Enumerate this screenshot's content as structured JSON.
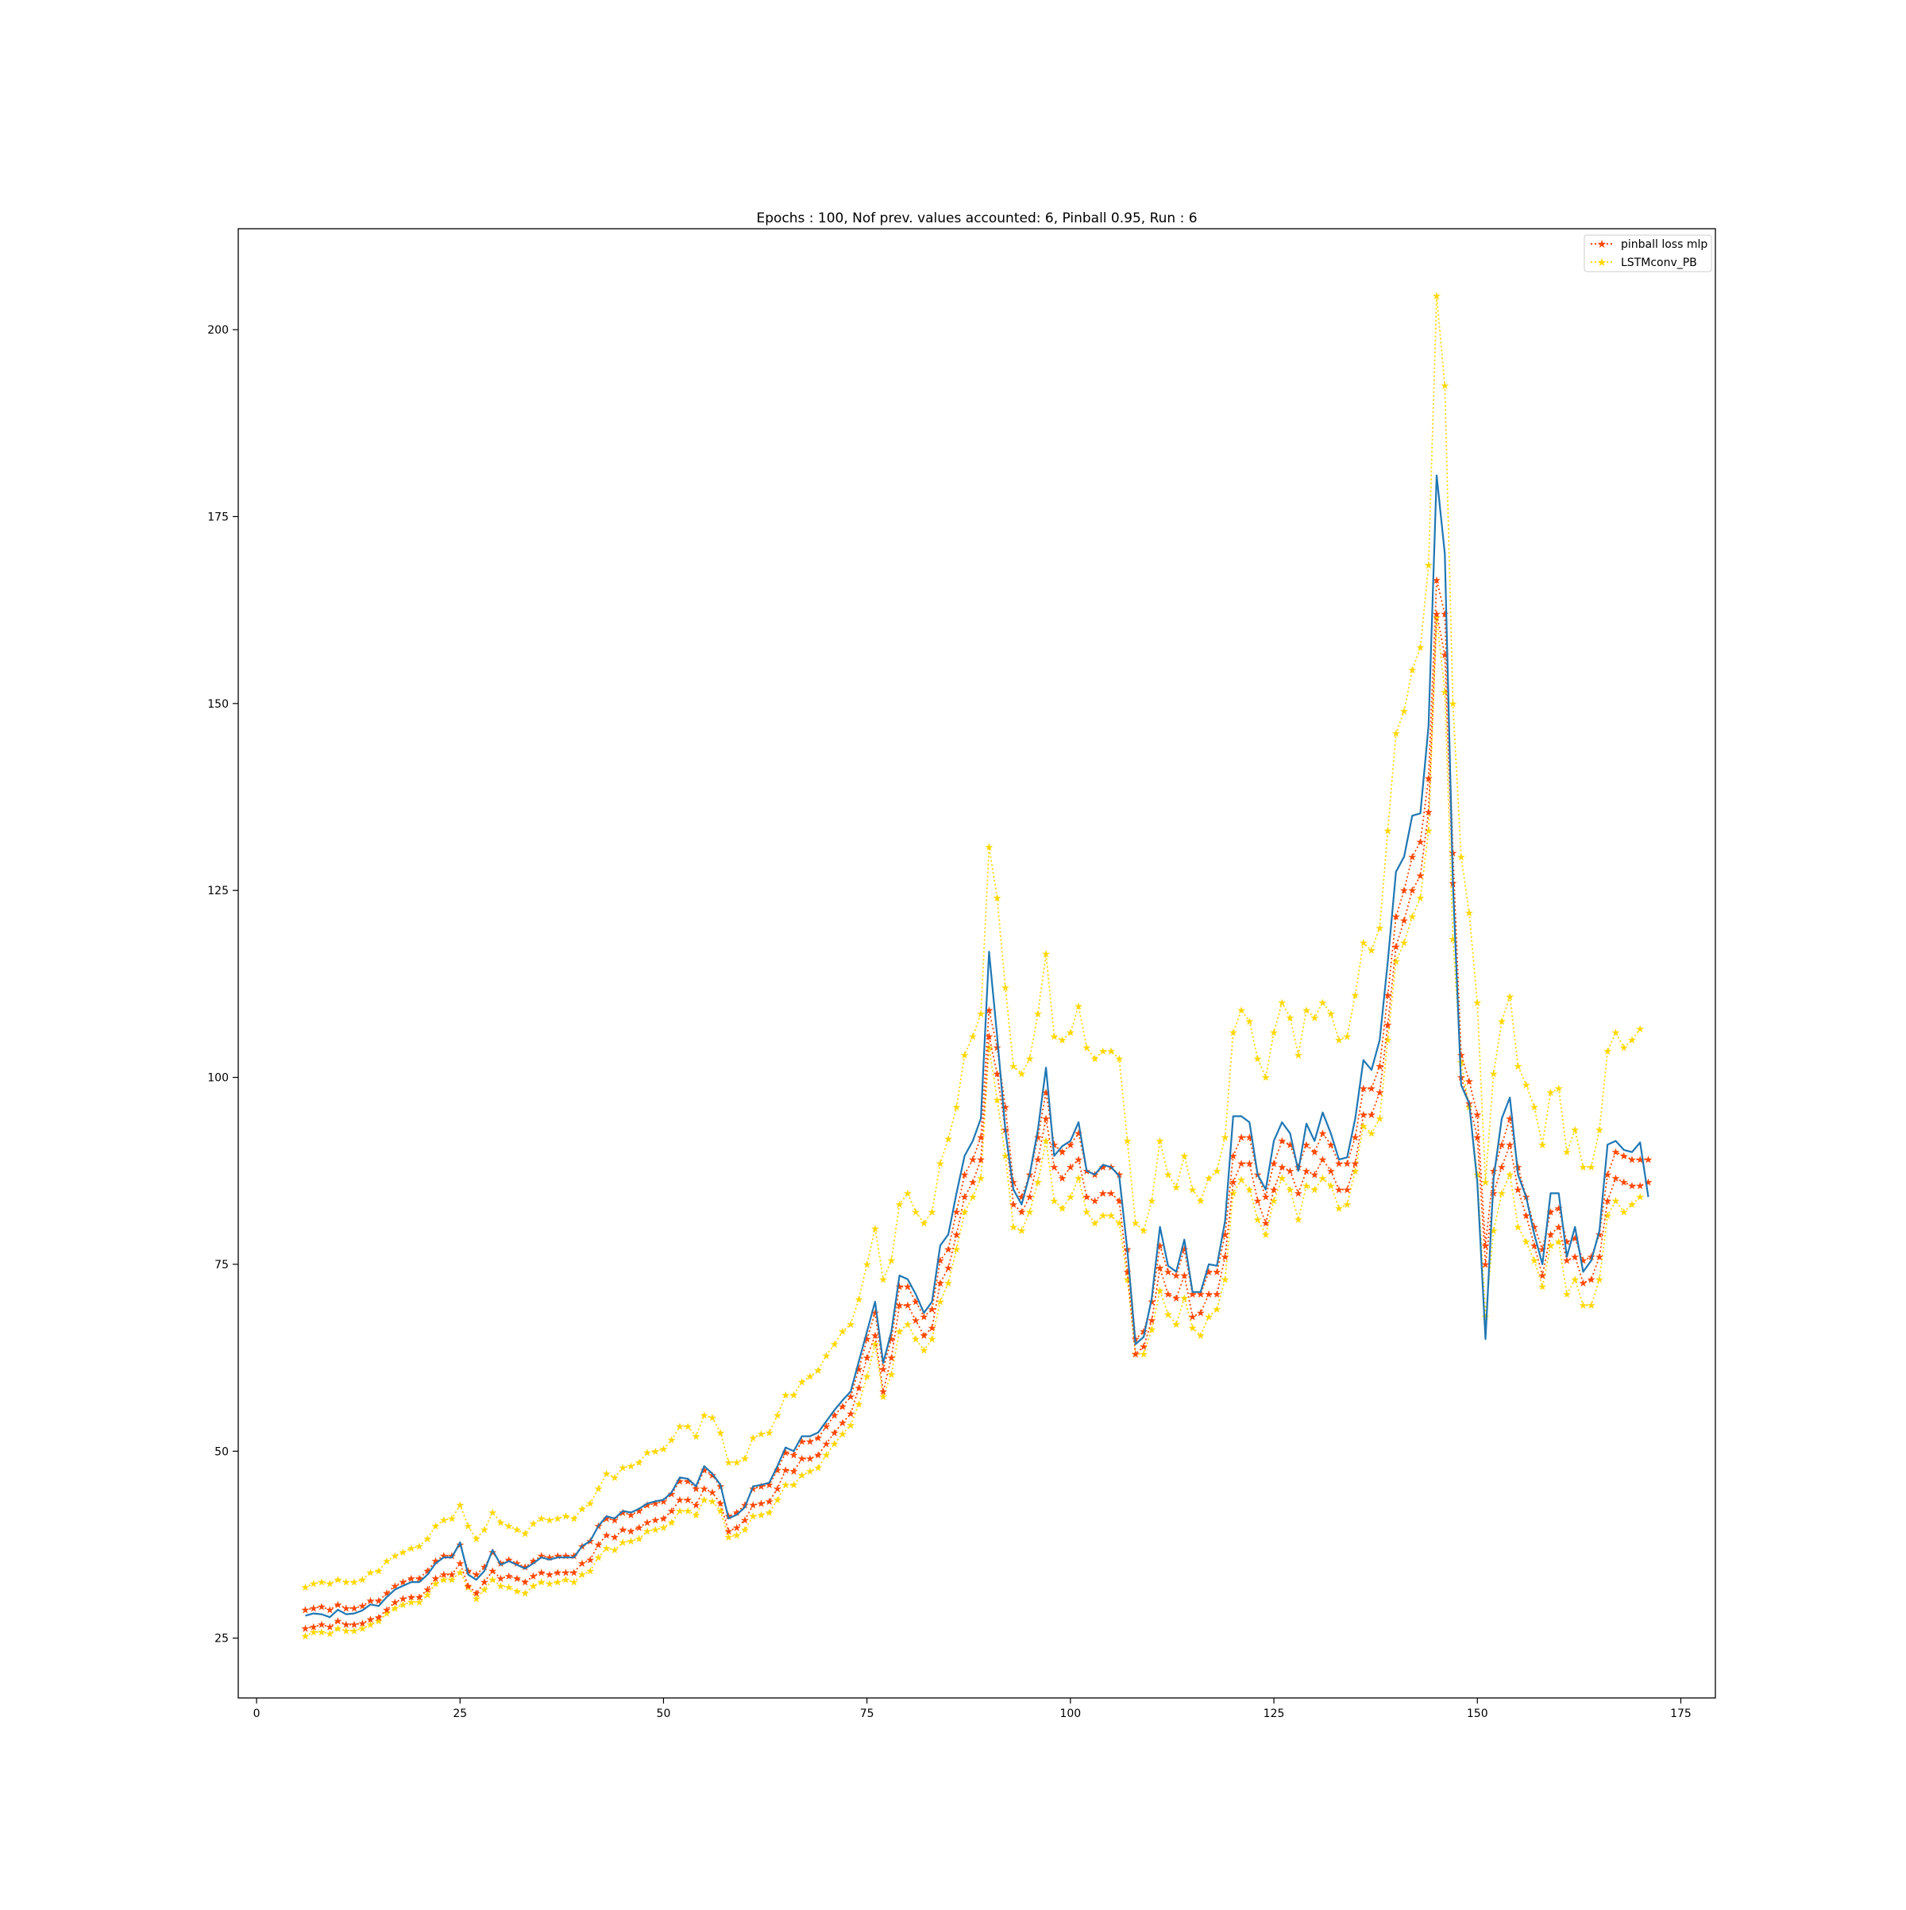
{
  "chart_data": {
    "type": "line",
    "title": "Epochs : 100, Nof prev. values accounted: 6, Pinball 0.95, Run : 6",
    "xlabel": "",
    "ylabel": "",
    "xlim": [
      -2.25,
      179.25
    ],
    "ylim": [
      17,
      213.5
    ],
    "xticks": [
      0,
      25,
      50,
      75,
      100,
      125,
      150,
      175
    ],
    "yticks": [
      25,
      50,
      75,
      100,
      125,
      150,
      175,
      200
    ],
    "grid": false,
    "legend": {
      "position": "top-right",
      "entries": [
        {
          "label": "pinball loss mlp",
          "color": "#ff4500"
        },
        {
          "label": "LSTMconv_PB",
          "color": "#ffd700"
        }
      ]
    },
    "x_start": 6,
    "series": [
      {
        "role": "actual",
        "color": "#1f77b4",
        "style": "solid",
        "values": [
          28,
          28.3,
          28.2,
          27.8,
          28.8,
          28.2,
          28.3,
          28.7,
          29.5,
          29.3,
          30.5,
          31.5,
          32,
          32.5,
          32.5,
          33.5,
          35,
          35.8,
          35.8,
          37.8,
          33.5,
          32.8,
          34,
          36.8,
          34.8,
          35.3,
          34.8,
          34.3,
          35,
          35.8,
          35.5,
          35.8,
          35.8,
          35.8,
          37.3,
          38,
          40,
          41.3,
          41,
          42,
          41.8,
          42.3,
          43,
          43.3,
          43.5,
          44.5,
          46.5,
          46.3,
          45.3,
          48,
          47,
          45.5,
          41,
          41.5,
          42.5,
          45.3,
          45.5,
          45.8,
          48,
          50.5,
          50,
          52,
          52,
          52.5,
          54,
          55.5,
          56.8,
          58,
          62,
          66,
          70,
          61.8,
          66,
          73.5,
          73,
          71,
          68.5,
          70,
          77.5,
          79,
          84.5,
          89.5,
          91.5,
          94.5,
          116.8,
          105.5,
          93,
          85,
          83,
          87,
          93,
          101.3,
          89.5,
          90.8,
          91.5,
          94,
          87.5,
          87,
          88.3,
          88,
          86.8,
          76.8,
          64.3,
          65.3,
          70.5,
          80,
          74.8,
          74,
          78.3,
          71.3,
          71.3,
          75,
          74.8,
          80.8,
          94.8,
          94.8,
          94,
          87,
          85,
          91.5,
          94,
          92.5,
          87.5,
          93.8,
          91.5,
          95.3,
          92.5,
          89,
          89.3,
          94.5,
          102.3,
          101,
          105,
          115.5,
          127.5,
          129.5,
          135,
          135.3,
          147,
          180.5,
          170,
          126,
          99,
          96.5,
          86,
          65,
          86.5,
          94.5,
          97.3,
          87,
          84,
          79,
          75,
          84.5,
          84.5,
          76,
          80,
          74,
          75.5,
          79.5,
          91,
          91.5,
          90.3,
          90,
          91.3,
          84
        ]
      },
      {
        "role": "pinball-upper",
        "name": "pinball loss mlp",
        "color": "#ff4500",
        "style": "dotted-star",
        "values": [
          28.8,
          29,
          29.2,
          28.8,
          29.5,
          29,
          29,
          29.3,
          30,
          30,
          31,
          32,
          32.5,
          33,
          33,
          34,
          35.3,
          36,
          36,
          37.5,
          34,
          33.5,
          34.5,
          36.5,
          35,
          35.5,
          35,
          34.5,
          35.3,
          36,
          35.8,
          36,
          36,
          36,
          37.3,
          38,
          40,
          41,
          40.8,
          41.8,
          41.5,
          42,
          42.8,
          43,
          43.3,
          44.3,
          46,
          46,
          45,
          47.5,
          46.8,
          45.3,
          41.3,
          41.8,
          42.8,
          45,
          45.3,
          45.5,
          47.5,
          49.8,
          49.5,
          51.3,
          51.3,
          51.8,
          53.3,
          54.8,
          56,
          57.3,
          61,
          65,
          68.5,
          61,
          65,
          72,
          72,
          70,
          68,
          69,
          75.5,
          77,
          82,
          87,
          89,
          92,
          109,
          104,
          96,
          86,
          84,
          87,
          92,
          98,
          91,
          90,
          91,
          92.5,
          87.5,
          87,
          88,
          88,
          87,
          77,
          65,
          66,
          70,
          77.5,
          74,
          73.5,
          77,
          71,
          71,
          74,
          74,
          79,
          89.5,
          92,
          92,
          87,
          84,
          88.5,
          91.5,
          91,
          88,
          91,
          90,
          92.5,
          91,
          88.5,
          88.5,
          92,
          98.5,
          98.5,
          101.5,
          111,
          121.5,
          125,
          129.5,
          131.5,
          140,
          166.5,
          162,
          130,
          103,
          99.5,
          95,
          77.5,
          87.5,
          91,
          94.5,
          88,
          84,
          80,
          77,
          82,
          82.5,
          78,
          78.5,
          75.5,
          76,
          79,
          87,
          90,
          89.5,
          89,
          89,
          89
        ]
      },
      {
        "role": "pinball-lower",
        "color": "#ff4500",
        "style": "dotted-star",
        "values": [
          26.3,
          26.5,
          26.8,
          26.5,
          27.3,
          26.8,
          26.8,
          27,
          27.5,
          27.8,
          28.8,
          29.8,
          30.3,
          30.5,
          30.5,
          31.5,
          33,
          33.5,
          33.5,
          35,
          32,
          31,
          32.5,
          34,
          33,
          33.3,
          33,
          32.5,
          33.3,
          33.8,
          33.5,
          33.8,
          33.8,
          33.8,
          35,
          35.5,
          37.5,
          38.8,
          38.5,
          39.5,
          39.3,
          39.8,
          40.5,
          40.8,
          41,
          42,
          43.5,
          43.5,
          42.8,
          45,
          44.5,
          43,
          39.3,
          39.8,
          40.8,
          42.8,
          43,
          43.3,
          45,
          47.5,
          47.3,
          49,
          49,
          49.5,
          51,
          52.5,
          53.8,
          55,
          58.5,
          62.5,
          65.5,
          58,
          62.5,
          69.5,
          69.5,
          67.5,
          65.5,
          66.5,
          72.5,
          74.5,
          79,
          84,
          86,
          89,
          105.5,
          100.5,
          93,
          83,
          82,
          84,
          89,
          94.5,
          88,
          86.5,
          88,
          89,
          84,
          83.5,
          84.5,
          84.5,
          83.5,
          74,
          63,
          64,
          67.5,
          74.5,
          71,
          70.5,
          73.5,
          68,
          68.5,
          71,
          71,
          76,
          86,
          88.5,
          88.5,
          83.5,
          80.5,
          85,
          88,
          87.5,
          84.5,
          87.5,
          87,
          89,
          87.5,
          85,
          85,
          88.5,
          95,
          95,
          98,
          107,
          117.5,
          121,
          125,
          127,
          135.5,
          162,
          156.5,
          126,
          100,
          96.5,
          92,
          75,
          84.5,
          88,
          91,
          85,
          81.5,
          77.5,
          73.5,
          79,
          80,
          75.5,
          76,
          72.5,
          73,
          76,
          83.5,
          86.5,
          86,
          85.5,
          85.5,
          86
        ]
      },
      {
        "role": "lstm-upper",
        "name": "LSTMconv_PB",
        "color": "#ffd700",
        "style": "dotted-star",
        "values": [
          31.8,
          32.3,
          32.5,
          32.3,
          32.8,
          32.5,
          32.5,
          32.8,
          33.8,
          34,
          35.3,
          36,
          36.5,
          37,
          37.3,
          38.3,
          40,
          40.8,
          41,
          42.8,
          40,
          38.3,
          39.5,
          41.8,
          40.5,
          40,
          39.5,
          39,
          40.3,
          41,
          40.8,
          41,
          41.3,
          41,
          42.3,
          43,
          45,
          47,
          46.5,
          47.8,
          48,
          48.5,
          49.8,
          50,
          50.3,
          51.5,
          53.3,
          53.3,
          52,
          54.8,
          54.5,
          52.5,
          48.5,
          48.5,
          49,
          51.8,
          52.3,
          52.5,
          54.8,
          57.5,
          57.5,
          59.3,
          60,
          60.8,
          62.8,
          64.3,
          66,
          67,
          70.3,
          75,
          79.8,
          73,
          75.5,
          83,
          84.5,
          82,
          80.5,
          82,
          88.5,
          91.8,
          96,
          103,
          105.5,
          108.5,
          130.8,
          124,
          112,
          101.5,
          100.5,
          102.5,
          108.5,
          116.5,
          105.5,
          105,
          106,
          109.5,
          104,
          102.5,
          103.5,
          103.5,
          102.5,
          91.5,
          80.5,
          79.5,
          83.5,
          91.5,
          87,
          85.3,
          89.5,
          85,
          83.5,
          86.5,
          87.5,
          92,
          106,
          109,
          107.5,
          102.5,
          100,
          106,
          110,
          108,
          103,
          109,
          108,
          110,
          108.5,
          105,
          105.5,
          111,
          118,
          117,
          120,
          133,
          146,
          149,
          154.5,
          157.5,
          168.5,
          204.5,
          192.5,
          150,
          129.5,
          122,
          110,
          86,
          100.5,
          107.5,
          110.8,
          101.5,
          99,
          96,
          91,
          98,
          98.5,
          90,
          93,
          88,
          88,
          93,
          103.5,
          106,
          104,
          105,
          106.5
        ]
      },
      {
        "role": "lstm-lower",
        "color": "#ffd700",
        "style": "dotted-star",
        "values": [
          25.3,
          25.8,
          25.8,
          25.6,
          26.3,
          26,
          26,
          26.3,
          26.8,
          27.3,
          28.3,
          29,
          29.5,
          29.8,
          29.8,
          30.8,
          32.3,
          32.8,
          32.8,
          33.8,
          31.8,
          30.3,
          31.5,
          32.8,
          32,
          31.8,
          31.3,
          31,
          32,
          32.5,
          32.3,
          32.5,
          32.8,
          32.5,
          33.5,
          34,
          35.8,
          37,
          36.8,
          37.8,
          38,
          38.3,
          39.3,
          39.5,
          39.8,
          40.5,
          42,
          42,
          41.5,
          43.5,
          43.3,
          42,
          38.5,
          38.8,
          39.5,
          41.3,
          41.5,
          41.8,
          43.5,
          45.5,
          45.5,
          46.8,
          47.3,
          47.8,
          49.5,
          51,
          52.3,
          53.5,
          56.3,
          60,
          64.3,
          57.3,
          60.3,
          66,
          67,
          65,
          63.5,
          65,
          70,
          72.5,
          77,
          82,
          84,
          86.5,
          104,
          97,
          89.5,
          80,
          79.5,
          82,
          86,
          91.5,
          83.5,
          82.5,
          84,
          86.5,
          82,
          80.5,
          81.5,
          81.5,
          80.5,
          73,
          63,
          63,
          66.3,
          71.5,
          68.3,
          67,
          70.5,
          66.5,
          65.5,
          68,
          69,
          73,
          84.5,
          86.3,
          85,
          81,
          79,
          83.5,
          86.5,
          85,
          81,
          85.5,
          85,
          86.5,
          85.5,
          82.5,
          83,
          87.5,
          93.5,
          92.5,
          94.5,
          105,
          115.5,
          118,
          121.5,
          124,
          133,
          161.5,
          151.5,
          118.5,
          102,
          96,
          87,
          68,
          79.5,
          84.5,
          87,
          80,
          78,
          75.5,
          72,
          77.5,
          78,
          71,
          73,
          69.5,
          69.5,
          73,
          81.5,
          83.5,
          82,
          83,
          84
        ]
      }
    ]
  }
}
